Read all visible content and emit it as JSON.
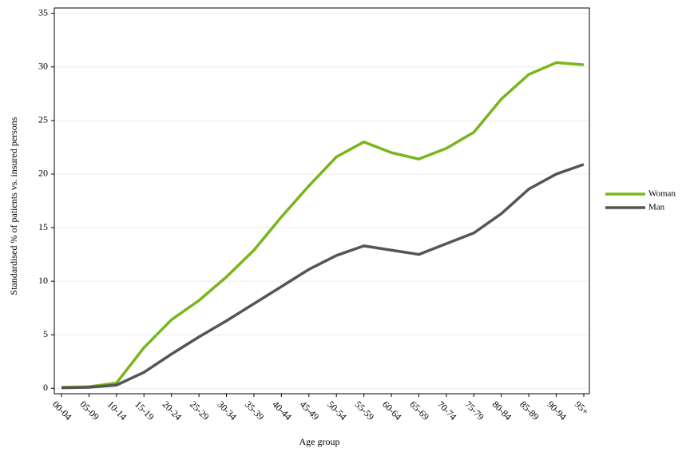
{
  "chart_data": {
    "type": "line",
    "x_label": "Age group",
    "y_label": "Standardised % of patients vs. insured persons",
    "categories": [
      "00-04",
      "05-09",
      "10-14",
      "15-19",
      "20-24",
      "25-29",
      "30-34",
      "35-39",
      "40-44",
      "45-49",
      "50-54",
      "55-59",
      "60-64",
      "65-69",
      "70-74",
      "75-79",
      "80-84",
      "85-89",
      "90-94",
      "95+"
    ],
    "series": [
      {
        "name": "Woman",
        "color": "#7ab51d",
        "values": [
          0.1,
          0.15,
          0.5,
          3.8,
          6.4,
          8.2,
          10.4,
          12.9,
          16.0,
          18.9,
          21.6,
          23.0,
          22.0,
          21.4,
          22.4,
          23.9,
          27.0,
          29.3,
          30.4,
          30.2
        ]
      },
      {
        "name": "Man",
        "color": "#555555",
        "values": [
          0.05,
          0.1,
          0.3,
          1.5,
          3.2,
          4.8,
          6.3,
          7.9,
          9.5,
          11.1,
          12.4,
          13.3,
          12.9,
          12.5,
          13.5,
          14.5,
          16.3,
          18.6,
          20.0,
          20.9
        ]
      }
    ],
    "ylim": [
      -0.5,
      35.5
    ],
    "yticks": [
      0,
      5,
      10,
      15,
      20,
      25,
      30,
      35
    ],
    "grid": true,
    "legend": "right"
  }
}
